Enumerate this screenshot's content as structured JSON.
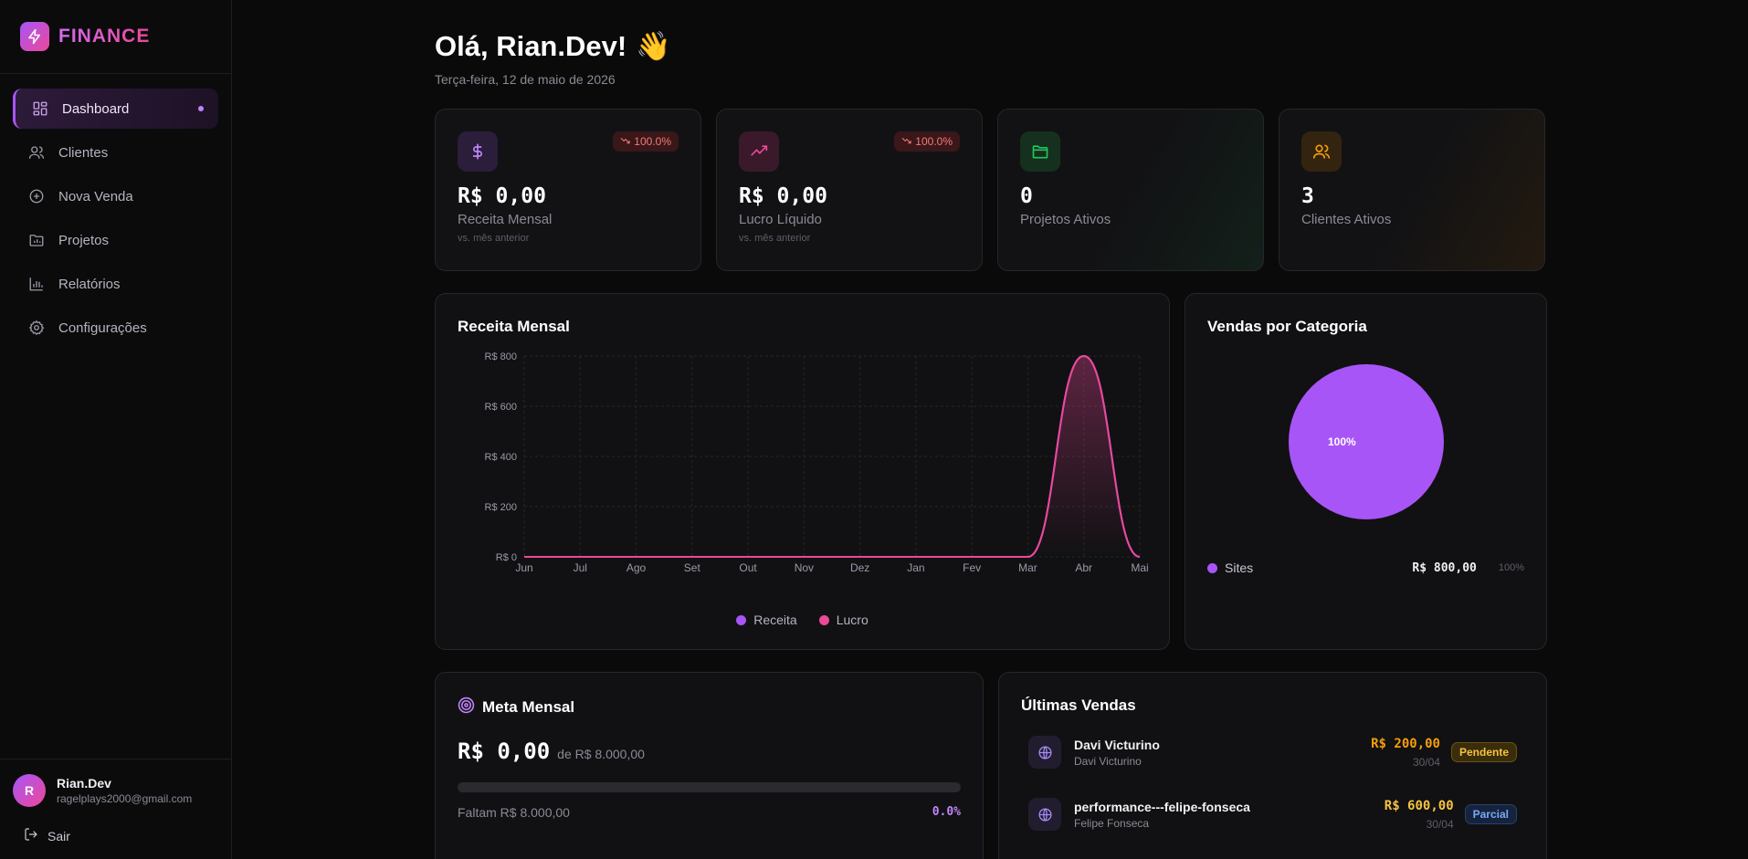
{
  "brand": {
    "name": "FINANCE"
  },
  "nav": {
    "items": [
      {
        "label": "Dashboard",
        "icon": "dashboard-icon",
        "active": true
      },
      {
        "label": "Clientes",
        "icon": "users-icon"
      },
      {
        "label": "Nova Venda",
        "icon": "plus-circle-icon"
      },
      {
        "label": "Projetos",
        "icon": "folder-chart-icon"
      },
      {
        "label": "Relatórios",
        "icon": "bar-chart-icon"
      },
      {
        "label": "Configurações",
        "icon": "gear-icon"
      }
    ]
  },
  "user": {
    "initial": "R",
    "name": "Rian.Dev",
    "email": "ragelplays2000@gmail.com",
    "logout": "Sair"
  },
  "header": {
    "greeting": "Olá, Rian.Dev!",
    "emoji": "👋",
    "date": "Terça-feira, 12 de maio de 2026"
  },
  "kpis": [
    {
      "icon": "dollar-icon",
      "value": "R$ 0,00",
      "label": "Receita Mensal",
      "sub": "vs. mês anterior",
      "badge": "100.0%",
      "color": "#a855f7"
    },
    {
      "icon": "trending-up-icon",
      "value": "R$ 0,00",
      "label": "Lucro Líquido",
      "sub": "vs. mês anterior",
      "badge": "100.0%",
      "color": "#ec4899"
    },
    {
      "icon": "folder-icon",
      "value": "0",
      "label": "Projetos Ativos",
      "color": "#22c55e"
    },
    {
      "icon": "users-icon",
      "value": "3",
      "label": "Clientes Ativos",
      "color": "#f59e0b"
    }
  ],
  "revenue_chart": {
    "title": "Receita Mensal",
    "legend": [
      {
        "name": "Receita",
        "color": "#a855f7"
      },
      {
        "name": "Lucro",
        "color": "#ec4899"
      }
    ]
  },
  "category_chart": {
    "title": "Vendas por Categoria",
    "slice_label": "100%",
    "legend": {
      "name": "Sites",
      "value": "R$ 800,00",
      "pct": "100%",
      "color": "#a855f7"
    }
  },
  "goal": {
    "title": "Meta Mensal",
    "current": "R$ 0,00",
    "of": "de R$ 8.000,00",
    "remaining": "Faltam R$ 8.000,00",
    "pct": "0.0%",
    "progress": 0
  },
  "sales": {
    "title": "Últimas Vendas",
    "items": [
      {
        "title": "Davi Victurino",
        "sub": "Davi Victurino",
        "amount": "R$ 200,00",
        "date": "30/04",
        "status": "Pendente",
        "amount_color": "#f59e0b"
      },
      {
        "title": "performance---felipe-fonseca",
        "sub": "Felipe Fonseca",
        "amount": "R$ 600,00",
        "date": "30/04",
        "status": "Parcial",
        "amount_color": "#f5c342"
      }
    ]
  },
  "chart_data": [
    {
      "type": "area",
      "title": "Receita Mensal",
      "categories": [
        "Jun",
        "Jul",
        "Ago",
        "Set",
        "Out",
        "Nov",
        "Dez",
        "Jan",
        "Fev",
        "Mar",
        "Abr",
        "Mai"
      ],
      "series": [
        {
          "name": "Receita",
          "values": [
            0,
            0,
            0,
            0,
            0,
            0,
            0,
            0,
            0,
            0,
            800,
            0
          ]
        },
        {
          "name": "Lucro",
          "values": [
            0,
            0,
            0,
            0,
            0,
            0,
            0,
            0,
            0,
            0,
            800,
            0
          ]
        }
      ],
      "y_ticks": [
        "R$ 0",
        "R$ 200",
        "R$ 400",
        "R$ 600",
        "R$ 800"
      ],
      "ylim": [
        0,
        800
      ],
      "grid": true,
      "legend": "bottom"
    },
    {
      "type": "pie",
      "title": "Vendas por Categoria",
      "categories": [
        "Sites"
      ],
      "values": [
        800
      ],
      "labels": [
        "100%"
      ]
    }
  ]
}
